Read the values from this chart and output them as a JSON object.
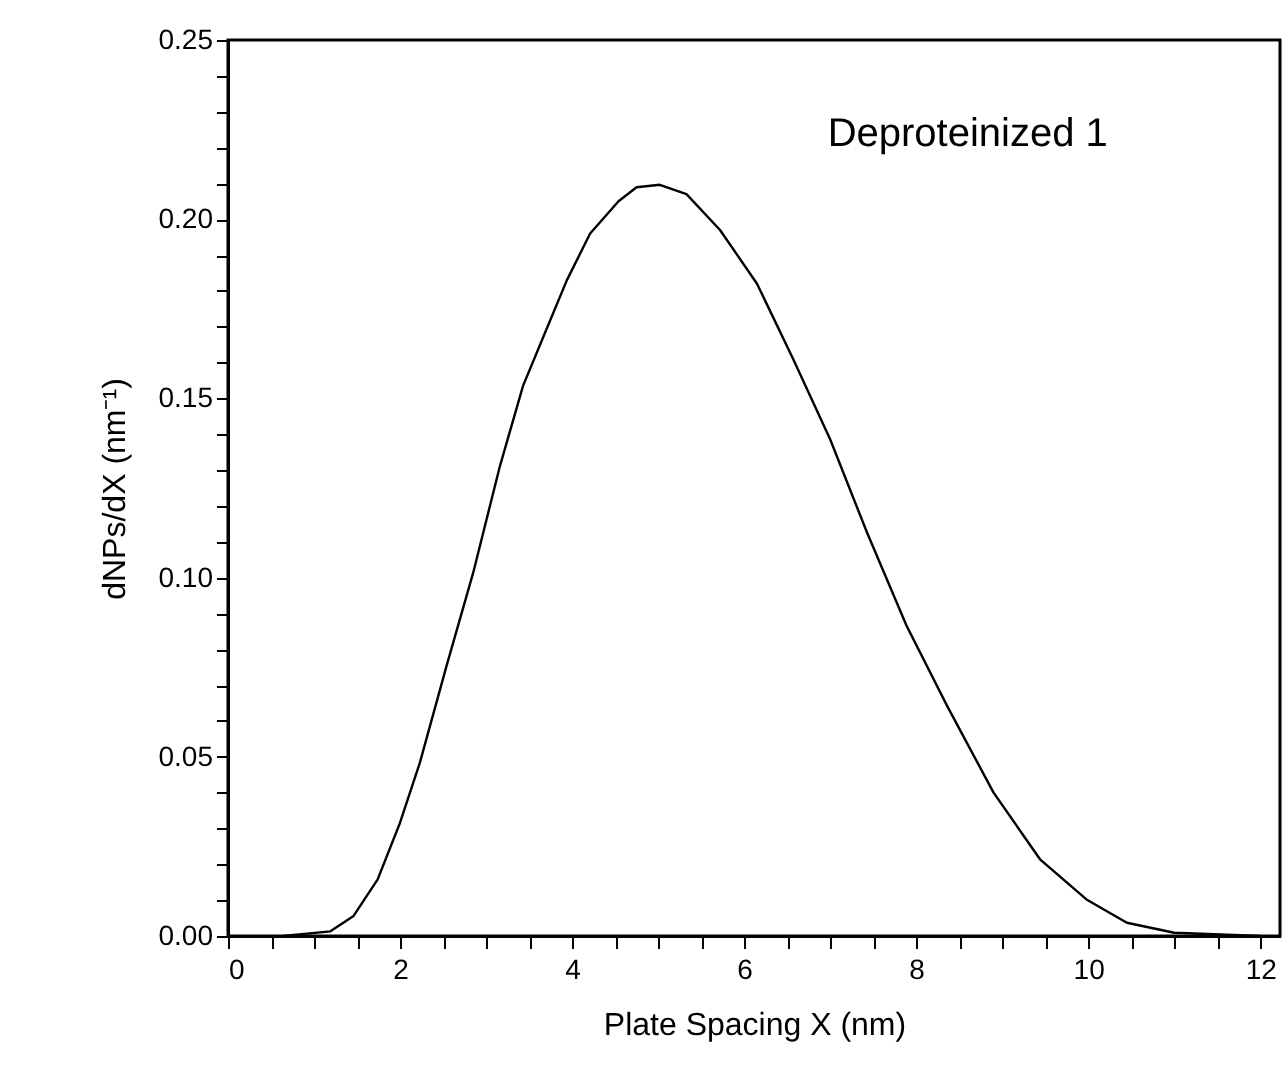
{
  "chart_data": {
    "type": "line",
    "xlabel": "Plate Spacing  X   (nm)",
    "ylabel": "dNPs/dX   (nm⁻¹)",
    "annotations": [
      "Deproteinized 1"
    ],
    "x": [
      0.64,
      1.19,
      1.46,
      1.74,
      2.0,
      2.23,
      2.54,
      2.85,
      3.16,
      3.43,
      3.67,
      3.94,
      4.21,
      4.54,
      4.75,
      5.02,
      5.33,
      5.72,
      6.15,
      6.57,
      7.0,
      7.43,
      7.89,
      8.36,
      8.9,
      9.44,
      9.98,
      10.45,
      11.0,
      12.0
    ],
    "series": [
      {
        "color": "#000000",
        "values": [
          0.0,
          0.0013,
          0.0056,
          0.0158,
          0.0316,
          0.0483,
          0.0753,
          0.1013,
          0.131,
          0.1535,
          0.1674,
          0.183,
          0.196,
          0.205,
          0.2089,
          0.2096,
          0.207,
          0.197,
          0.182,
          0.161,
          0.1386,
          0.1125,
          0.0865,
          0.0642,
          0.04,
          0.0214,
          0.0102,
          0.0037,
          0.0009,
          0.0
        ]
      }
    ],
    "xlim": [
      0,
      12.23
    ],
    "ylim": [
      0,
      0.25
    ],
    "xticks": [
      0,
      {
        "value": 0.5,
        "label": null
      },
      {
        "value": 1,
        "label": null
      },
      {
        "value": 1.5,
        "label": null
      },
      2,
      {
        "value": 2.5,
        "label": null
      },
      {
        "value": 3,
        "label": null
      },
      {
        "value": 3.5,
        "label": null
      },
      4,
      {
        "value": 4.5,
        "label": null
      },
      {
        "value": 5,
        "label": null
      },
      {
        "value": 5.5,
        "label": null
      },
      6,
      {
        "value": 6.5,
        "label": null
      },
      {
        "value": 7,
        "label": null
      },
      {
        "value": 7.5,
        "label": null
      },
      8,
      {
        "value": 8.5,
        "label": null
      },
      {
        "value": 9,
        "label": null
      },
      {
        "value": 9.5,
        "label": null
      },
      10,
      {
        "value": 10.5,
        "label": null
      },
      {
        "value": 11,
        "label": null
      },
      {
        "value": 11.5,
        "label": null
      },
      12
    ],
    "yticks": [
      {
        "value": 0,
        "label": "0.00"
      },
      {
        "value": 0.01,
        "label": null
      },
      {
        "value": 0.02,
        "label": null
      },
      {
        "value": 0.03,
        "label": null
      },
      {
        "value": 0.04,
        "label": null
      },
      {
        "value": 0.05,
        "label": "0.05"
      },
      {
        "value": 0.06,
        "label": null
      },
      {
        "value": 0.07,
        "label": null
      },
      {
        "value": 0.08,
        "label": null
      },
      {
        "value": 0.09,
        "label": null
      },
      {
        "value": 0.1,
        "label": "0.10"
      },
      {
        "value": 0.11,
        "label": null
      },
      {
        "value": 0.12,
        "label": null
      },
      {
        "value": 0.13,
        "label": null
      },
      {
        "value": 0.14,
        "label": null
      },
      {
        "value": 0.15,
        "label": "0.15"
      },
      {
        "value": 0.16,
        "label": null
      },
      {
        "value": 0.17,
        "label": null
      },
      {
        "value": 0.18,
        "label": null
      },
      {
        "value": 0.19,
        "label": null
      },
      {
        "value": 0.2,
        "label": "0.20"
      },
      {
        "value": 0.21,
        "label": null
      },
      {
        "value": 0.22,
        "label": null
      },
      {
        "value": 0.23,
        "label": null
      },
      {
        "value": 0.24,
        "label": null
      },
      {
        "value": 0.25,
        "label": "0.25"
      }
    ],
    "grid": false,
    "marker": "none",
    "line_style": "solid"
  }
}
